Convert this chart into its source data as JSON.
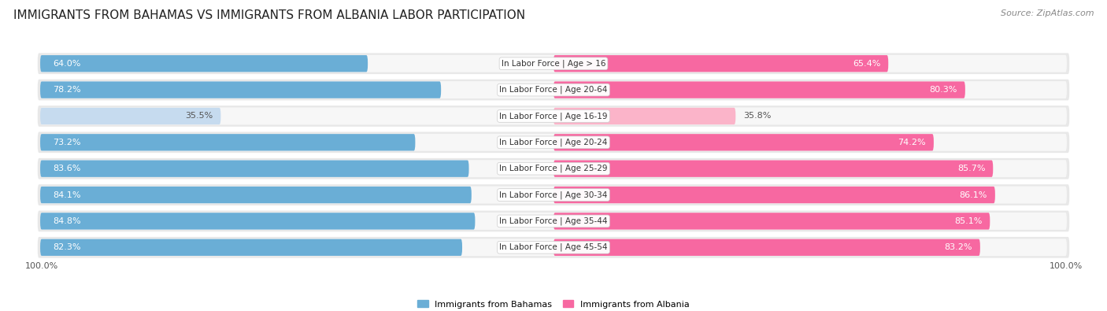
{
  "title": "IMMIGRANTS FROM BAHAMAS VS IMMIGRANTS FROM ALBANIA LABOR PARTICIPATION",
  "source": "Source: ZipAtlas.com",
  "categories": [
    "In Labor Force | Age > 16",
    "In Labor Force | Age 20-64",
    "In Labor Force | Age 16-19",
    "In Labor Force | Age 20-24",
    "In Labor Force | Age 25-29",
    "In Labor Force | Age 30-34",
    "In Labor Force | Age 35-44",
    "In Labor Force | Age 45-54"
  ],
  "bahamas_values": [
    64.0,
    78.2,
    35.5,
    73.2,
    83.6,
    84.1,
    84.8,
    82.3
  ],
  "albania_values": [
    65.4,
    80.3,
    35.8,
    74.2,
    85.7,
    86.1,
    85.1,
    83.2
  ],
  "bahamas_color": "#6aaed6",
  "albania_color": "#f768a1",
  "bahamas_color_light": "#c6dbef",
  "albania_color_light": "#fbb4c9",
  "row_bg_color": "#e8e8e8",
  "row_inner_color": "#f7f7f7",
  "label_color_white": "#ffffff",
  "label_color_dark": "#555555",
  "max_value": 100.0,
  "legend_label_bahamas": "Immigrants from Bahamas",
  "legend_label_albania": "Immigrants from Albania",
  "title_fontsize": 11,
  "label_fontsize": 8.0,
  "category_fontsize": 7.5,
  "footer_fontsize": 8,
  "color_threshold": 50.0
}
